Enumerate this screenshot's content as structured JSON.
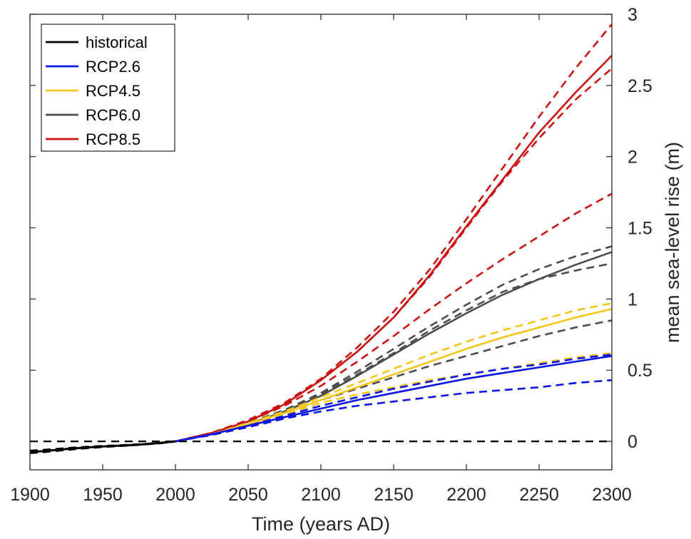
{
  "chart_data": {
    "type": "line",
    "title": "",
    "xlabel": "Time (years AD)",
    "ylabel": "mean sea-level rise (m)",
    "xlim": [
      1900,
      2300
    ],
    "ylim": [
      -0.2,
      3.0
    ],
    "y_axis_position": "right",
    "grid": false,
    "legend_position": "top-left",
    "x_ticks": [
      1900,
      1950,
      2000,
      2050,
      2100,
      2150,
      2200,
      2250,
      2300
    ],
    "y_ticks": [
      0,
      0.5,
      1,
      1.5,
      2,
      2.5,
      3
    ],
    "x_tick_labels": [
      "1900",
      "1950",
      "2000",
      "2050",
      "2100",
      "2150",
      "2200",
      "2250",
      "2300"
    ],
    "y_tick_labels": [
      "0",
      "0.5",
      "1",
      "1.5",
      "2",
      "2.5",
      "3"
    ],
    "reference_line": {
      "y": 0,
      "style": "dashed",
      "color": "#000000"
    },
    "series": [
      {
        "name": "historical",
        "color": "#000000",
        "x": [
          1900,
          1910,
          1920,
          1930,
          1940,
          1950,
          1960,
          1970,
          1980,
          1990,
          2000
        ],
        "mean": [
          -0.075,
          -0.068,
          -0.058,
          -0.05,
          -0.042,
          -0.036,
          -0.031,
          -0.026,
          -0.019,
          -0.011,
          0.0
        ],
        "lower": [
          -0.082,
          -0.074,
          -0.064,
          -0.055,
          -0.046,
          -0.039,
          -0.033,
          -0.027,
          -0.02,
          -0.012,
          0.0
        ],
        "upper": [
          -0.066,
          -0.06,
          -0.052,
          -0.045,
          -0.038,
          -0.033,
          -0.029,
          -0.024,
          -0.018,
          -0.01,
          0.0
        ]
      },
      {
        "name": "RCP2.6",
        "color": "#0b16e6",
        "x": [
          2000,
          2025,
          2050,
          2075,
          2100,
          2125,
          2150,
          2175,
          2200,
          2225,
          2250,
          2275,
          2300
        ],
        "mean": [
          0.0,
          0.05,
          0.11,
          0.17,
          0.23,
          0.29,
          0.34,
          0.39,
          0.44,
          0.48,
          0.52,
          0.56,
          0.6
        ],
        "lower": [
          0.0,
          0.045,
          0.1,
          0.16,
          0.21,
          0.25,
          0.28,
          0.31,
          0.34,
          0.36,
          0.38,
          0.41,
          0.43
        ],
        "upper": [
          0.0,
          0.05,
          0.11,
          0.18,
          0.25,
          0.31,
          0.37,
          0.42,
          0.47,
          0.51,
          0.54,
          0.58,
          0.61
        ]
      },
      {
        "name": "RCP4.5",
        "color": "#f5c518",
        "x": [
          2000,
          2025,
          2050,
          2075,
          2100,
          2125,
          2150,
          2175,
          2200,
          2225,
          2250,
          2275,
          2300
        ],
        "mean": [
          0.0,
          0.05,
          0.12,
          0.2,
          0.29,
          0.38,
          0.47,
          0.56,
          0.65,
          0.73,
          0.8,
          0.87,
          0.93
        ],
        "lower": [
          0.0,
          0.05,
          0.12,
          0.19,
          0.27,
          0.33,
          0.38,
          0.43,
          0.47,
          0.51,
          0.55,
          0.59,
          0.62
        ],
        "upper": [
          0.0,
          0.05,
          0.13,
          0.21,
          0.31,
          0.41,
          0.51,
          0.61,
          0.7,
          0.78,
          0.85,
          0.92,
          0.97
        ]
      },
      {
        "name": "RCP6.0",
        "color": "#4d4d4d",
        "x": [
          2000,
          2025,
          2050,
          2075,
          2100,
          2125,
          2150,
          2175,
          2200,
          2225,
          2250,
          2275,
          2300
        ],
        "mean": [
          0.0,
          0.05,
          0.12,
          0.21,
          0.32,
          0.46,
          0.61,
          0.76,
          0.9,
          1.03,
          1.14,
          1.24,
          1.33
        ],
        "lower": [
          0.0,
          0.05,
          0.12,
          0.2,
          0.29,
          0.37,
          0.45,
          0.53,
          0.6,
          0.67,
          0.74,
          0.8,
          0.85
        ],
        "upper": [
          0.0,
          0.05,
          0.13,
          0.22,
          0.34,
          0.49,
          0.65,
          0.81,
          0.96,
          1.1,
          1.21,
          1.3,
          1.37
        ],
        "upper_alt": [
          0.0,
          0.05,
          0.13,
          0.22,
          0.33,
          0.47,
          0.62,
          0.78,
          0.92,
          1.05,
          1.14,
          1.2,
          1.25
        ]
      },
      {
        "name": "RCP8.5",
        "color": "#cc1111",
        "x": [
          2000,
          2025,
          2050,
          2075,
          2100,
          2125,
          2150,
          2175,
          2200,
          2225,
          2250,
          2275,
          2300
        ],
        "mean": [
          0.0,
          0.06,
          0.14,
          0.26,
          0.43,
          0.63,
          0.87,
          1.17,
          1.51,
          1.84,
          2.17,
          2.45,
          2.71
        ],
        "lower": [
          0.0,
          0.06,
          0.14,
          0.25,
          0.39,
          0.56,
          0.74,
          0.93,
          1.11,
          1.28,
          1.44,
          1.6,
          1.74
        ],
        "upper": [
          0.0,
          0.06,
          0.15,
          0.27,
          0.44,
          0.66,
          0.91,
          1.21,
          1.56,
          1.92,
          2.28,
          2.62,
          2.93
        ],
        "upper_alt": [
          0.0,
          0.06,
          0.14,
          0.26,
          0.43,
          0.63,
          0.87,
          1.16,
          1.5,
          1.83,
          2.13,
          2.4,
          2.62
        ]
      }
    ]
  }
}
